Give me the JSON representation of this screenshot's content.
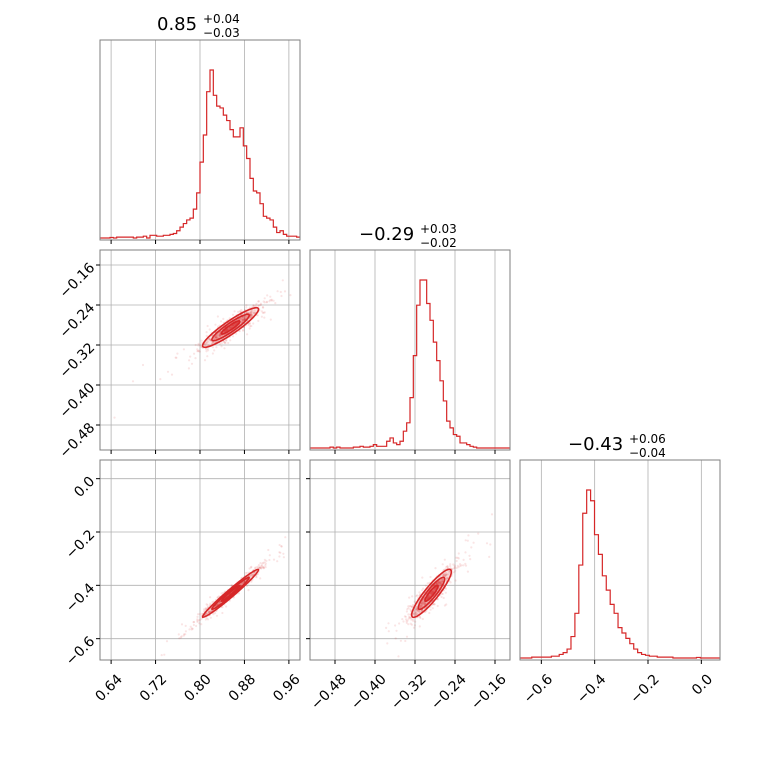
{
  "colors": {
    "series": "#d62728",
    "grid": "#b0b0b0",
    "frame": "#7f7f7f"
  },
  "chart_data": {
    "type": "corner",
    "parameters": [
      {
        "title_main": "0.85",
        "title_plus": "+0.04",
        "title_minus": "−0.03",
        "range": [
          0.62,
          0.98
        ],
        "ticks": [
          0.64,
          0.72,
          0.8,
          0.88,
          0.96
        ],
        "tick_labels": [
          "0.64",
          "0.72",
          "0.80",
          "0.88",
          "0.96"
        ],
        "hist": {
          "lo": 0.62,
          "hi": 0.98,
          "values": [
            0,
            0,
            0,
            0.003,
            0,
            0.005,
            0.005,
            0.005,
            0.005,
            0.005,
            0,
            0.005,
            0.005,
            0.01,
            0,
            0.015,
            0.015,
            0.01,
            0.01,
            0.015,
            0.015,
            0.02,
            0.025,
            0.04,
            0.06,
            0.08,
            0.1,
            0.11,
            0.16,
            0.25,
            0.42,
            0.57,
            0.81,
            0.93,
            0.79,
            0.73,
            0.72,
            0.68,
            0.65,
            0.6,
            0.56,
            0.56,
            0.61,
            0.51,
            0.44,
            0.33,
            0.26,
            0.25,
            0.19,
            0.12,
            0.11,
            0.1,
            0.06,
            0.03,
            0.04,
            0.02,
            0.01,
            0.01,
            0.01,
            0.005
          ]
        }
      },
      {
        "title_main": "−0.29",
        "title_plus": "+0.03",
        "title_minus": "−0.02",
        "range": [
          -0.53,
          -0.13
        ],
        "ticks": [
          -0.48,
          -0.4,
          -0.32,
          -0.24,
          -0.16
        ],
        "tick_labels": [
          "−0.48",
          "−0.40",
          "−0.32",
          "−0.24",
          "−0.16"
        ],
        "hist": {
          "lo": -0.53,
          "hi": -0.13,
          "values": [
            0,
            0,
            0,
            0,
            0,
            0,
            0.005,
            0,
            0.005,
            0,
            0,
            0,
            0,
            0.005,
            0.005,
            0.01,
            0.005,
            0.005,
            0.01,
            0.02,
            0.01,
            0.01,
            0.01,
            0.04,
            0.06,
            0.03,
            0.02,
            0.04,
            0.1,
            0.15,
            0.3,
            0.55,
            0.85,
            1.0,
            1.0,
            0.86,
            0.76,
            0.63,
            0.52,
            0.4,
            0.28,
            0.16,
            0.12,
            0.08,
            0.07,
            0.03,
            0.03,
            0.02,
            0.01,
            0.005,
            0,
            0,
            0,
            0,
            0,
            0,
            0,
            0,
            0,
            0
          ]
        }
      },
      {
        "title_main": "−0.43",
        "title_plus": "+0.06",
        "title_minus": "−0.04",
        "range": [
          -0.68,
          0.07
        ],
        "ticks": [
          -0.6,
          -0.4,
          -0.2,
          0.0
        ],
        "tick_labels": [
          "−0.6",
          "−0.4",
          "−0.2",
          "0.0"
        ],
        "hist": {
          "lo": -0.68,
          "hi": 0.07,
          "values": [
            0,
            0,
            0,
            0.005,
            0.005,
            0.005,
            0.005,
            0.005,
            0.01,
            0.01,
            0.02,
            0.03,
            0.05,
            0.12,
            0.25,
            0.52,
            0.81,
            0.94,
            0.88,
            0.69,
            0.58,
            0.46,
            0.38,
            0.3,
            0.25,
            0.17,
            0.14,
            0.11,
            0.08,
            0.05,
            0.03,
            0.02,
            0.015,
            0.01,
            0.01,
            0.005,
            0.005,
            0.005,
            0.005,
            0,
            0,
            0,
            0,
            0,
            0,
            0.003,
            0,
            0,
            0,
            0,
            0
          ]
        }
      }
    ],
    "pair_panels": [
      {
        "x_param": 0,
        "y_param": 1,
        "center": [
          0.855,
          -0.285
        ],
        "sx": 0.028,
        "sy": 0.022,
        "corr": 0.92
      },
      {
        "x_param": 0,
        "y_param": 2,
        "center": [
          0.855,
          -0.43
        ],
        "sx": 0.028,
        "sy": 0.05,
        "corr": 0.98
      },
      {
        "x_param": 1,
        "y_param": 2,
        "center": [
          -0.287,
          -0.43
        ],
        "sx": 0.022,
        "sy": 0.05,
        "corr": 0.9
      }
    ],
    "grid": true
  }
}
